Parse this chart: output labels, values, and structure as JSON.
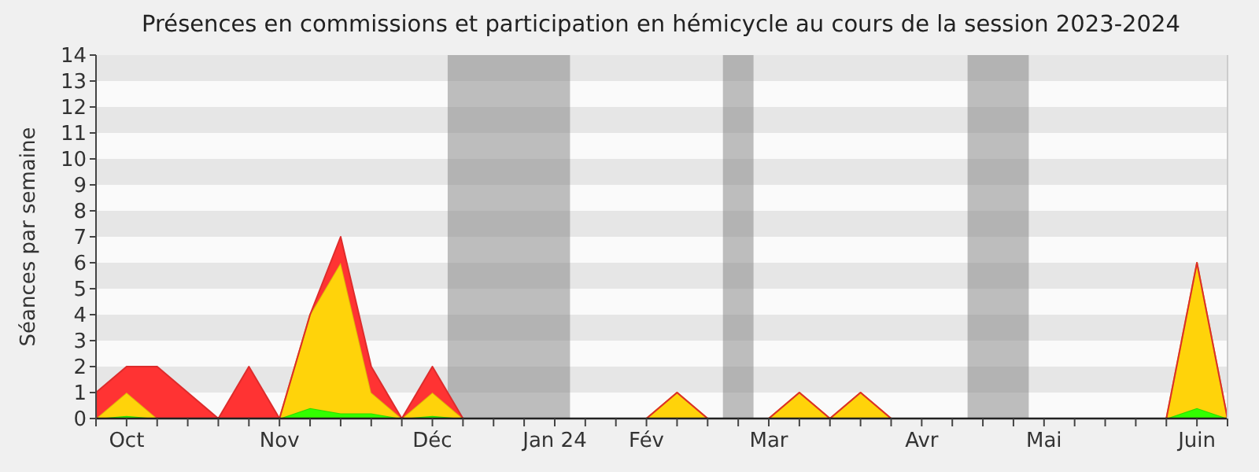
{
  "chart_data": {
    "type": "area",
    "stacked": true,
    "title": "Présences en commissions et participation en hémicycle au cours de la session 2023-2024",
    "ylabel": "Séances par semaine",
    "categories": [
      null,
      "Oct",
      null,
      null,
      null,
      null,
      "Nov",
      null,
      null,
      null,
      null,
      "Déc",
      null,
      null,
      null,
      "Jan 24",
      null,
      null,
      "Fév",
      null,
      null,
      null,
      "Mar",
      null,
      null,
      null,
      null,
      "Avr",
      null,
      null,
      null,
      "Mai",
      null,
      null,
      null,
      null,
      "Juin",
      null
    ],
    "series": [
      {
        "color": "#33ff00",
        "values": [
          0,
          0.1,
          0,
          0,
          0,
          0,
          0,
          0.4,
          0.2,
          0.2,
          0,
          0.1,
          0,
          0,
          0,
          0,
          0,
          0,
          0,
          0,
          0,
          0,
          0,
          0,
          0,
          0,
          0,
          0,
          0,
          0,
          0,
          0,
          0,
          0,
          0,
          0,
          0.4,
          0
        ]
      },
      {
        "color": "#ffd30a",
        "values": [
          0,
          0.9,
          0,
          0,
          0,
          0,
          0,
          3.6,
          5.8,
          0.8,
          0,
          0.9,
          0,
          0,
          0,
          0,
          0,
          0,
          0,
          1,
          0,
          0,
          0,
          1,
          0,
          1,
          0,
          0,
          0,
          0,
          0,
          0,
          0,
          0,
          0,
          0,
          5.6,
          0
        ]
      },
      {
        "color": "#ff3333",
        "values": [
          1,
          1,
          2,
          1,
          0,
          2,
          0,
          0,
          1,
          1,
          0,
          1,
          0,
          0,
          0,
          0,
          0,
          0,
          0,
          0,
          0,
          0,
          0,
          0,
          0,
          0,
          0,
          0,
          0,
          0,
          0,
          0,
          0,
          0,
          0,
          0,
          0,
          0
        ]
      }
    ],
    "ylim": [
      0,
      14
    ],
    "yticks": [
      0,
      1,
      2,
      3,
      4,
      5,
      6,
      7,
      8,
      9,
      10,
      11,
      12,
      13,
      14
    ]
  }
}
